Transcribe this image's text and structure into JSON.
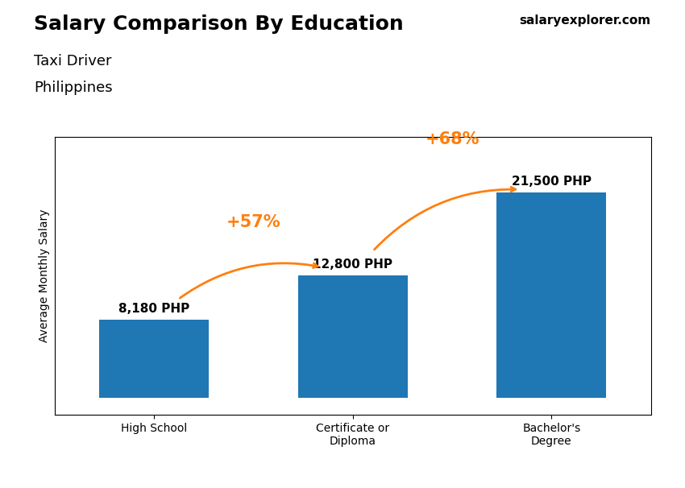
{
  "chart_data": {
    "type": "bar",
    "title": "Salary Comparison By Education",
    "subtitle": [
      "Taxi Driver",
      "Philippines"
    ],
    "watermark": "salaryexplorer.com",
    "y_label": "Average Monthly Salary",
    "categories": [
      "High School",
      "Certificate or\nDiploma",
      "Bachelor's\nDegree"
    ],
    "values": [
      8180,
      12800,
      21500
    ],
    "value_labels": [
      "8,180 PHP",
      "12,800 PHP",
      "21,500 PHP"
    ],
    "data_labels": true,
    "annotations": [
      "+57%",
      "+68%"
    ],
    "ylim": [
      -1800,
      27300
    ],
    "tick_labels": "x",
    "grid": false
  }
}
